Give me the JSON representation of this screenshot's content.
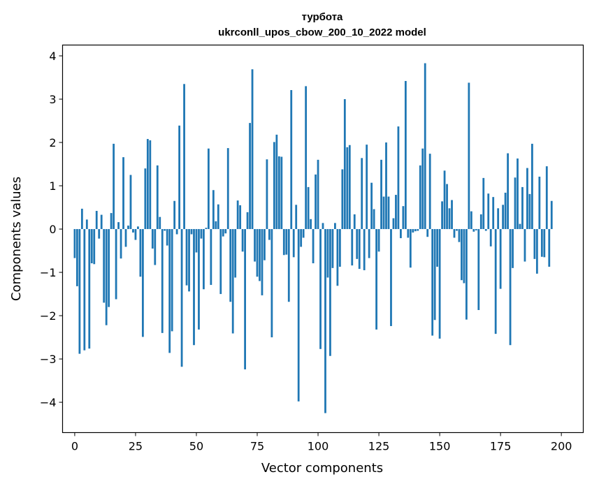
{
  "chart_data": {
    "type": "bar",
    "title": "турбота",
    "subtitle": "ukrconll_upos_cbow_200_10_2022 model",
    "xlabel": "Vector components",
    "ylabel": "Components values",
    "xlim": [
      -5,
      209
    ],
    "ylim": [
      -4.7,
      4.25
    ],
    "xticks": [
      0,
      25,
      50,
      75,
      100,
      125,
      150,
      175,
      200
    ],
    "yticks": [
      -4,
      -3,
      -2,
      -1,
      0,
      1,
      2,
      3,
      4
    ],
    "bar_color": "#1f77b4",
    "values": [
      -0.67,
      -1.32,
      -2.88,
      0.47,
      -2.8,
      0.22,
      -2.76,
      -0.79,
      -0.81,
      0.42,
      -0.22,
      0.33,
      -1.7,
      -2.22,
      -1.8,
      0.37,
      1.97,
      -1.62,
      0.16,
      -0.68,
      1.66,
      -0.41,
      0.08,
      1.25,
      -0.08,
      -0.25,
      0.06,
      -1.1,
      -2.49,
      1.4,
      2.08,
      2.05,
      -0.45,
      -0.83,
      1.47,
      0.28,
      -2.4,
      -0.04,
      -0.38,
      -2.86,
      -2.36,
      0.65,
      -0.12,
      2.39,
      -3.18,
      3.35,
      -1.3,
      -1.44,
      -0.12,
      -2.68,
      -0.54,
      -2.32,
      -0.22,
      -1.39,
      0.03,
      1.86,
      -1.29,
      0.9,
      0.18,
      0.57,
      -1.5,
      -0.17,
      -0.1,
      1.87,
      -1.68,
      -2.41,
      -1.12,
      0.66,
      0.55,
      -0.52,
      -3.24,
      0.39,
      2.45,
      3.69,
      -0.75,
      -1.1,
      -1.2,
      -1.53,
      -0.72,
      1.61,
      -0.25,
      -2.5,
      2.01,
      2.18,
      1.68,
      1.67,
      -0.6,
      -0.59,
      -1.68,
      3.21,
      -0.65,
      0.56,
      -3.98,
      -0.41,
      -0.2,
      3.3,
      0.97,
      0.23,
      -0.79,
      1.26,
      1.6,
      -2.77,
      0.14,
      -4.25,
      -1.12,
      -2.93,
      -0.9,
      0.14,
      -1.31,
      -0.87,
      1.38,
      3.0,
      1.89,
      1.94,
      -0.84,
      0.34,
      -0.69,
      -0.92,
      1.64,
      -0.95,
      1.95,
      -0.67,
      1.07,
      0.46,
      -2.32,
      -0.52,
      1.6,
      0.75,
      2.0,
      0.75,
      -2.24,
      0.25,
      0.79,
      2.37,
      -0.21,
      0.53,
      3.42,
      -0.2,
      -0.89,
      -0.08,
      -0.05,
      -0.04,
      1.47,
      1.86,
      3.83,
      -0.18,
      1.74,
      -2.46,
      -2.1,
      -0.87,
      -2.53,
      0.64,
      1.35,
      1.04,
      0.48,
      0.67,
      -0.2,
      -0.04,
      -0.3,
      -1.18,
      -1.25,
      -2.09,
      3.38,
      0.41,
      -0.06,
      -0.03,
      -1.87,
      0.34,
      1.18,
      -0.04,
      0.82,
      -0.4,
      0.74,
      -2.42,
      0.48,
      -1.38,
      0.56,
      0.84,
      1.75,
      -2.68,
      -0.9,
      1.19,
      1.63,
      0.12,
      0.97,
      -0.75,
      1.41,
      0.81,
      1.97,
      -0.69,
      -1.03,
      1.21,
      -0.64,
      -0.65,
      1.45,
      -0.87,
      0.65
    ]
  }
}
